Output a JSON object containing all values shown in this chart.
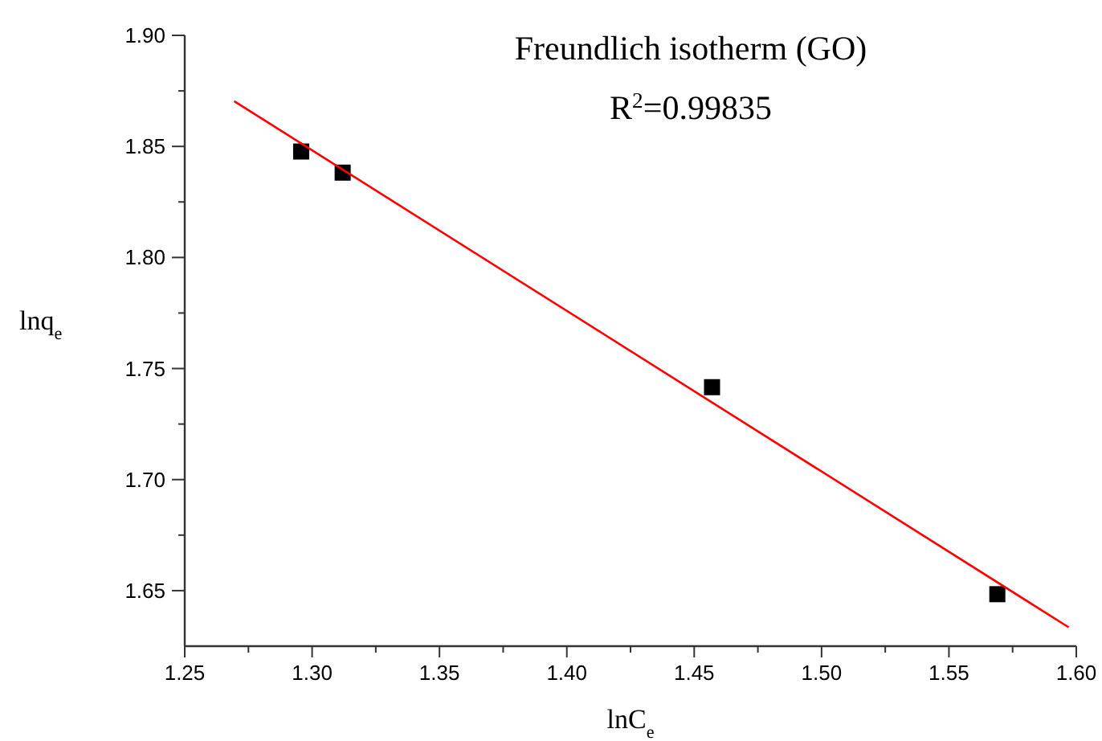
{
  "chart_data": {
    "type": "scatter",
    "xlabel": "lnC$_{e}$",
    "ylabel": "lnq$_{e}$",
    "annotations": [
      "Freundlich isotherm (GO)",
      "R$^{2}$=0.99835"
    ],
    "xlim": [
      1.25,
      1.6
    ],
    "ylim": [
      1.625,
      1.9
    ],
    "xticks": [
      {
        "value": 1.25,
        "label": "1.25"
      },
      {
        "value": 1.275,
        "label": null
      },
      {
        "value": 1.3,
        "label": "1.30"
      },
      {
        "value": 1.325,
        "label": null
      },
      {
        "value": 1.35,
        "label": "1.35"
      },
      {
        "value": 1.375,
        "label": null
      },
      {
        "value": 1.4,
        "label": "1.40"
      },
      {
        "value": 1.425,
        "label": null
      },
      {
        "value": 1.45,
        "label": "1.45"
      },
      {
        "value": 1.475,
        "label": null
      },
      {
        "value": 1.5,
        "label": "1.50"
      },
      {
        "value": 1.525,
        "label": null
      },
      {
        "value": 1.55,
        "label": "1.55"
      },
      {
        "value": 1.575,
        "label": null
      },
      {
        "value": 1.6,
        "label": "1.60"
      }
    ],
    "yticks": [
      {
        "value": 1.65,
        "label": "1.65"
      },
      {
        "value": 1.675,
        "label": null
      },
      {
        "value": 1.7,
        "label": "1.70"
      },
      {
        "value": 1.725,
        "label": null
      },
      {
        "value": 1.75,
        "label": "1.75"
      },
      {
        "value": 1.775,
        "label": null
      },
      {
        "value": 1.8,
        "label": "1.80"
      },
      {
        "value": 1.825,
        "label": null
      },
      {
        "value": 1.85,
        "label": "1.85"
      },
      {
        "value": 1.875,
        "label": null
      },
      {
        "value": 1.9,
        "label": "1.90"
      }
    ],
    "grid": false,
    "series": [
      {
        "color": "#000000",
        "marker": "square",
        "x": [
          1.2957,
          1.312,
          1.457,
          1.569
        ],
        "values": [
          1.8477,
          1.8382,
          1.7416,
          1.6484
        ]
      },
      {
        "type": "line",
        "color": "#ff0000",
        "marker": "none",
        "line_style": "solid",
        "x": [
          1.2694,
          1.597
        ],
        "values": [
          1.8704,
          1.6335
        ]
      }
    ]
  }
}
